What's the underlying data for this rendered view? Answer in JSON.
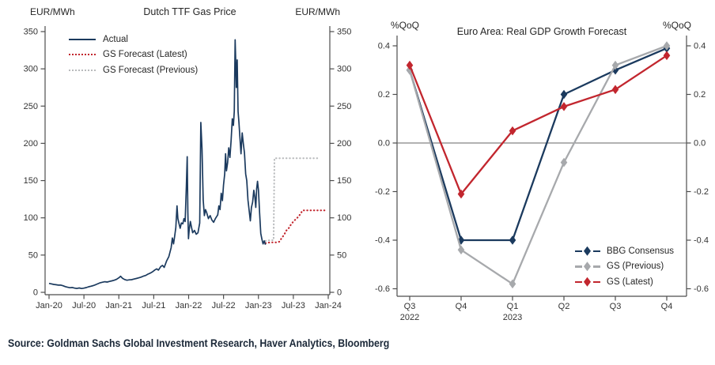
{
  "source_line": "Source: Goldman Sachs Global Investment Research, Haver Analytics, Bloomberg",
  "colors": {
    "navy": "#1b3a5e",
    "red": "#c2262e",
    "gray": "#a7a9ac",
    "gray_light": "#b9bbbd",
    "axis": "#4d4d4d",
    "tick_text": "#333333",
    "zero_line": "#666666",
    "source_text": "#1b2838"
  },
  "chart_data": [
    {
      "type": "line",
      "title": "Dutch TTF Gas Price",
      "unit_left": "EUR/MWh",
      "unit_right": "EUR/MWh",
      "x_unit": "months since Jan-2020",
      "xlim": [
        0,
        48
      ],
      "ylim": [
        0,
        350
      ],
      "y_axis": {
        "ticks": [
          "0",
          "50",
          "100",
          "150",
          "200",
          "250",
          "300",
          "350"
        ]
      },
      "x_axis": {
        "ticks": [
          {
            "label": "Jan-20",
            "m": 0
          },
          {
            "label": "Jul-20",
            "m": 6
          },
          {
            "label": "Jan-21",
            "m": 12
          },
          {
            "label": "Jul-21",
            "m": 18
          },
          {
            "label": "Jan-22",
            "m": 24
          },
          {
            "label": "Jul-22",
            "m": 30
          },
          {
            "label": "Jan-23",
            "m": 36
          },
          {
            "label": "Jul-23",
            "m": 42
          },
          {
            "label": "Jan-24",
            "m": 48
          }
        ]
      },
      "series": [
        {
          "name": "GS Forecast (Previous)",
          "color_key": "gray_light",
          "style": "dotted",
          "points": [
            [
              37.2,
              69
            ],
            [
              38,
              70
            ],
            [
              38.6,
              70
            ],
            [
              38.75,
              180
            ],
            [
              40,
              180
            ],
            [
              42,
              180
            ],
            [
              44,
              180
            ],
            [
              46.2,
              180
            ]
          ]
        },
        {
          "name": "GS Forecast (Latest)",
          "color_key": "red",
          "style": "dotted",
          "points": [
            [
              37.2,
              66
            ],
            [
              38,
              67
            ],
            [
              39,
              67
            ],
            [
              39.6,
              68
            ],
            [
              40,
              73
            ],
            [
              40.4,
              77
            ],
            [
              40.8,
              83
            ],
            [
              41.2,
              86
            ],
            [
              41.6,
              91
            ],
            [
              42,
              95
            ],
            [
              42.4,
              98
            ],
            [
              42.8,
              101
            ],
            [
              43.2,
              105
            ],
            [
              43.6,
              110
            ],
            [
              44.2,
              110
            ],
            [
              45,
              110
            ],
            [
              46,
              110
            ],
            [
              47,
              110
            ],
            [
              47.6,
              110
            ]
          ]
        },
        {
          "name": "Actual",
          "color_key": "navy",
          "style": "solid",
          "points": [
            [
              0,
              12
            ],
            [
              0.4,
              11.3
            ],
            [
              0.8,
              10.6
            ],
            [
              1.2,
              10.2
            ],
            [
              1.6,
              9.6
            ],
            [
              2,
              9.8
            ],
            [
              2.4,
              8.8
            ],
            [
              2.8,
              7.6
            ],
            [
              3.2,
              6.8
            ],
            [
              3.6,
              6.2
            ],
            [
              4,
              6.5
            ],
            [
              4.4,
              5.6
            ],
            [
              4.8,
              5.2
            ],
            [
              5.2,
              5.8
            ],
            [
              5.6,
              5.1
            ],
            [
              6,
              5.6
            ],
            [
              6.4,
              6.4
            ],
            [
              6.8,
              7.4
            ],
            [
              7.2,
              8.2
            ],
            [
              7.6,
              9
            ],
            [
              8,
              10.2
            ],
            [
              8.4,
              11.6
            ],
            [
              8.8,
              12.8
            ],
            [
              9.2,
              13.6
            ],
            [
              9.6,
              14.2
            ],
            [
              10,
              13.8
            ],
            [
              10.4,
              14.6
            ],
            [
              10.8,
              15.4
            ],
            [
              11.2,
              16.2
            ],
            [
              11.6,
              17.4
            ],
            [
              12,
              19.5
            ],
            [
              12.3,
              21.5
            ],
            [
              12.6,
              19
            ],
            [
              13,
              17.2
            ],
            [
              13.4,
              16.2
            ],
            [
              13.8,
              16.8
            ],
            [
              14.2,
              17
            ],
            [
              14.6,
              17.8
            ],
            [
              15,
              18.6
            ],
            [
              15.4,
              19.4
            ],
            [
              15.8,
              20.4
            ],
            [
              16.2,
              21.6
            ],
            [
              16.6,
              22.6
            ],
            [
              17,
              24.4
            ],
            [
              17.4,
              25.8
            ],
            [
              17.8,
              27.6
            ],
            [
              18.2,
              30
            ],
            [
              18.5,
              31.5
            ],
            [
              18.8,
              29.8
            ],
            [
              19.2,
              34.6
            ],
            [
              19.5,
              36.2
            ],
            [
              19.8,
              33.4
            ],
            [
              20.2,
              42
            ],
            [
              20.6,
              48
            ],
            [
              21,
              60
            ],
            [
              21.2,
              73
            ],
            [
              21.4,
              65
            ],
            [
              21.6,
              75
            ],
            [
              21.8,
              87
            ],
            [
              22,
              116
            ],
            [
              22.15,
              99
            ],
            [
              22.35,
              92
            ],
            [
              22.55,
              86
            ],
            [
              22.75,
              93
            ],
            [
              23,
              92
            ],
            [
              23.2,
              99
            ],
            [
              23.4,
              95
            ],
            [
              23.6,
              142
            ],
            [
              23.75,
              182
            ],
            [
              23.87,
              108
            ],
            [
              23.97,
              72
            ],
            [
              24.1,
              84
            ],
            [
              24.3,
              95
            ],
            [
              24.5,
              87
            ],
            [
              24.7,
              80
            ],
            [
              25,
              83
            ],
            [
              25.3,
              78
            ],
            [
              25.6,
              80
            ],
            [
              25.9,
              93
            ],
            [
              26.1,
              228
            ],
            [
              26.3,
              193
            ],
            [
              26.5,
              124
            ],
            [
              26.7,
              103
            ],
            [
              26.9,
              111
            ],
            [
              27.1,
              107
            ],
            [
              27.4,
              99
            ],
            [
              27.7,
              103
            ],
            [
              28,
              97
            ],
            [
              28.3,
              94
            ],
            [
              28.6,
              99
            ],
            [
              29,
              104
            ],
            [
              29.2,
              116
            ],
            [
              29.4,
              111
            ],
            [
              29.6,
              133
            ],
            [
              29.8,
              123
            ],
            [
              30,
              144
            ],
            [
              30.2,
              159
            ],
            [
              30.35,
              186
            ],
            [
              30.5,
              163
            ],
            [
              30.7,
              174
            ],
            [
              30.9,
              194
            ],
            [
              31.1,
              181
            ],
            [
              31.3,
              204
            ],
            [
              31.5,
              233
            ],
            [
              31.7,
              224
            ],
            [
              31.85,
              243
            ],
            [
              32,
              339
            ],
            [
              32.1,
              308
            ],
            [
              32.2,
              275
            ],
            [
              32.35,
              312
            ],
            [
              32.5,
              243
            ],
            [
              32.65,
              228
            ],
            [
              32.8,
              210
            ],
            [
              33,
              186
            ],
            [
              33.2,
              214
            ],
            [
              33.4,
              200
            ],
            [
              33.6,
              187
            ],
            [
              33.8,
              159
            ],
            [
              34,
              150
            ],
            [
              34.2,
              124
            ],
            [
              34.4,
              110
            ],
            [
              34.6,
              96
            ],
            [
              34.8,
              114
            ],
            [
              35,
              121
            ],
            [
              35.2,
              137
            ],
            [
              35.4,
              127
            ],
            [
              35.55,
              114
            ],
            [
              35.7,
              139
            ],
            [
              35.85,
              149
            ],
            [
              36,
              137
            ],
            [
              36.2,
              107
            ],
            [
              36.4,
              79
            ],
            [
              36.6,
              71
            ],
            [
              36.8,
              65
            ],
            [
              37,
              69
            ],
            [
              37.2,
              64
            ]
          ]
        }
      ],
      "legend": [
        "Actual",
        "GS Forecast (Latest)",
        "GS Forecast (Previous)"
      ]
    },
    {
      "type": "line",
      "title": "Euro Area: Real GDP Growth Forecast",
      "unit_left": "%QoQ",
      "unit_right": "%QoQ",
      "ylim": [
        -0.6,
        0.4
      ],
      "zero_line": true,
      "y_axis": {
        "ticks": [
          "0.4",
          "0.2",
          "0.0",
          "-0.2",
          "-0.4",
          "-0.6"
        ]
      },
      "categories": [
        "Q3",
        "Q4",
        "Q1",
        "Q2",
        "Q3",
        "Q4"
      ],
      "category_years": [
        {
          "index": 0,
          "year": "2022"
        },
        {
          "index": 2,
          "year": "2023"
        }
      ],
      "series": [
        {
          "name": "BBG Consensus",
          "color_key": "navy",
          "marker": "diamond",
          "values": [
            0.3,
            -0.4,
            -0.4,
            0.2,
            0.3,
            0.39
          ]
        },
        {
          "name": "GS (Previous)",
          "color_key": "gray",
          "marker": "diamond",
          "values": [
            0.3,
            -0.44,
            -0.58,
            -0.08,
            0.32,
            0.4
          ]
        },
        {
          "name": "GS (Latest)",
          "color_key": "red",
          "marker": "diamond",
          "values": [
            0.32,
            -0.21,
            0.05,
            0.15,
            0.22,
            0.36
          ]
        }
      ],
      "legend": [
        "BBG Consensus",
        "GS (Previous)",
        "GS (Latest)"
      ]
    }
  ]
}
